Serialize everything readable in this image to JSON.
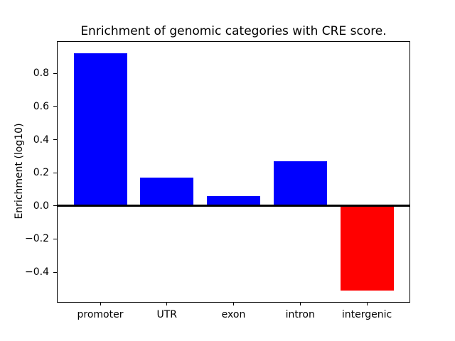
{
  "chart_data": {
    "type": "bar",
    "title": "Enrichment of genomic categories with CRE score.",
    "xlabel": "",
    "ylabel": "Enrichment (log10)",
    "categories": [
      "promoter",
      "UTR",
      "exon",
      "intron",
      "intergenic"
    ],
    "values": [
      0.92,
      0.17,
      0.06,
      0.27,
      -0.51
    ],
    "bar_colors": [
      "#0000ff",
      "#0000ff",
      "#0000ff",
      "#0000ff",
      "#ff0000"
    ],
    "positive_color": "#0000ff",
    "negative_color": "#ff0000",
    "yticks": [
      0.8,
      0.6,
      0.4,
      0.2,
      0.0,
      -0.2,
      -0.4
    ],
    "ytick_labels": [
      "0.8",
      "0.6",
      "0.4",
      "0.2",
      "0.0",
      "−0.2",
      "−0.4"
    ],
    "ylim": [
      -0.58,
      0.99
    ],
    "xlim": [
      -0.64,
      4.64
    ],
    "bar_width": 0.8,
    "zero_line": true,
    "grid": false,
    "legend": null,
    "background": "#ffffff",
    "axis_color": "#000000"
  }
}
